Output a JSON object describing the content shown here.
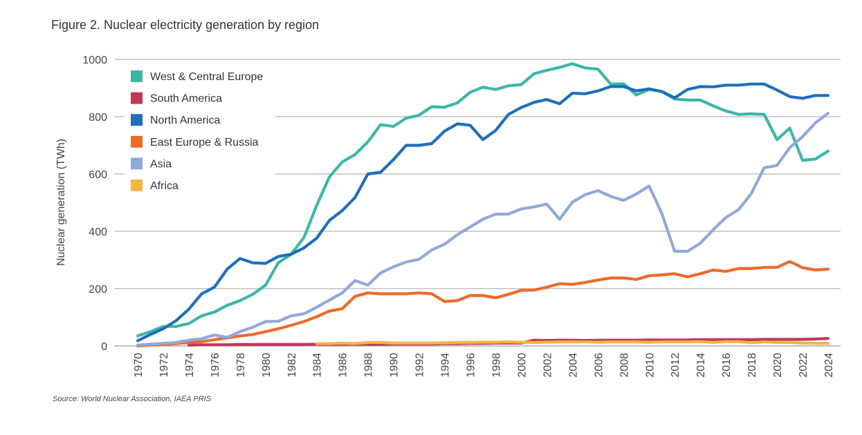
{
  "title": "Figure 2. Nuclear electricity generation by region",
  "source": "Source: World Nuclear Association, IAEA PRIS",
  "chart_data": {
    "type": "line",
    "title": "Figure 2. Nuclear electricity generation by region",
    "xlabel": "",
    "ylabel": "Nuclear generation (TWh)",
    "ylim": [
      0,
      1000
    ],
    "yticks": [
      0,
      200,
      400,
      600,
      800,
      1000
    ],
    "xlim": [
      1970,
      2024
    ],
    "xticks": [
      1970,
      1972,
      1974,
      1976,
      1978,
      1980,
      1982,
      1984,
      1986,
      1988,
      1990,
      1992,
      1994,
      1996,
      1998,
      2000,
      2002,
      2004,
      2006,
      2008,
      2010,
      2012,
      2014,
      2016,
      2018,
      2020,
      2022,
      2024
    ],
    "grid": true,
    "legend_position": "top-left",
    "x_start": 1970,
    "series": [
      {
        "name": "West & Central Europe",
        "color": "#3cb6a8",
        "values": [
          35,
          50,
          68,
          68,
          78,
          105,
          118,
          142,
          158,
          180,
          212,
          290,
          320,
          378,
          490,
          590,
          642,
          668,
          712,
          772,
          766,
          795,
          805,
          835,
          833,
          848,
          885,
          903,
          895,
          908,
          912,
          950,
          962,
          972,
          985,
          970,
          966,
          914,
          915,
          876,
          895,
          888,
          862,
          858,
          858,
          838,
          820,
          808,
          810,
          808,
          720,
          760,
          648,
          652,
          680
        ]
      },
      {
        "name": "South America",
        "color": "#c0395a",
        "values": [
          null,
          null,
          null,
          null,
          3,
          4,
          4,
          4,
          5,
          5,
          5,
          5,
          5,
          5,
          6,
          6,
          6,
          6,
          6,
          6,
          7,
          7,
          7,
          7,
          8,
          8,
          9,
          9,
          10,
          10,
          10,
          20,
          19,
          20,
          20,
          19,
          20,
          20,
          20,
          20,
          21,
          21,
          21,
          21,
          22,
          22,
          22,
          22,
          22,
          23,
          23,
          23,
          23,
          24,
          26
        ]
      },
      {
        "name": "North America",
        "color": "#1f6fbc",
        "values": [
          18,
          40,
          60,
          88,
          128,
          182,
          205,
          268,
          305,
          290,
          288,
          312,
          320,
          342,
          376,
          438,
          472,
          518,
          600,
          606,
          650,
          700,
          700,
          706,
          750,
          775,
          770,
          720,
          752,
          808,
          832,
          850,
          860,
          845,
          882,
          880,
          890,
          905,
          905,
          890,
          897,
          888,
          866,
          895,
          905,
          904,
          910,
          910,
          914,
          914,
          893,
          870,
          864,
          874,
          874
        ]
      },
      {
        "name": "East Europe & Russia",
        "color": "#ef6a28",
        "values": [
          0,
          3,
          5,
          8,
          12,
          15,
          22,
          28,
          35,
          40,
          50,
          60,
          72,
          85,
          102,
          122,
          130,
          173,
          185,
          182,
          182,
          182,
          185,
          182,
          155,
          158,
          176,
          176,
          168,
          180,
          194,
          195,
          205,
          217,
          215,
          222,
          230,
          237,
          237,
          232,
          245,
          248,
          252,
          241,
          252,
          265,
          260,
          270,
          270,
          274,
          274,
          295,
          273,
          265,
          268
        ]
      },
      {
        "name": "Asia",
        "color": "#90a9d9",
        "values": [
          3,
          6,
          9,
          12,
          20,
          25,
          38,
          30,
          50,
          65,
          85,
          86,
          105,
          112,
          135,
          160,
          185,
          228,
          212,
          255,
          276,
          293,
          302,
          335,
          355,
          388,
          415,
          442,
          460,
          460,
          478,
          485,
          495,
          442,
          502,
          528,
          542,
          522,
          508,
          530,
          558,
          462,
          330,
          330,
          358,
          405,
          448,
          476,
          532,
          622,
          630,
          692,
          730,
          778,
          812
        ]
      },
      {
        "name": "Africa",
        "color": "#f7b441",
        "values": [
          null,
          null,
          null,
          null,
          null,
          null,
          null,
          null,
          null,
          null,
          null,
          null,
          null,
          null,
          8,
          8,
          10,
          8,
          12,
          12,
          10,
          10,
          10,
          10,
          11,
          12,
          12,
          13,
          13,
          14,
          13,
          12,
          13,
          14,
          14,
          14,
          13,
          14,
          14,
          14,
          13,
          14,
          14,
          14,
          15,
          12,
          15,
          15,
          11,
          14,
          12,
          12,
          10,
          9,
          9
        ]
      }
    ]
  }
}
